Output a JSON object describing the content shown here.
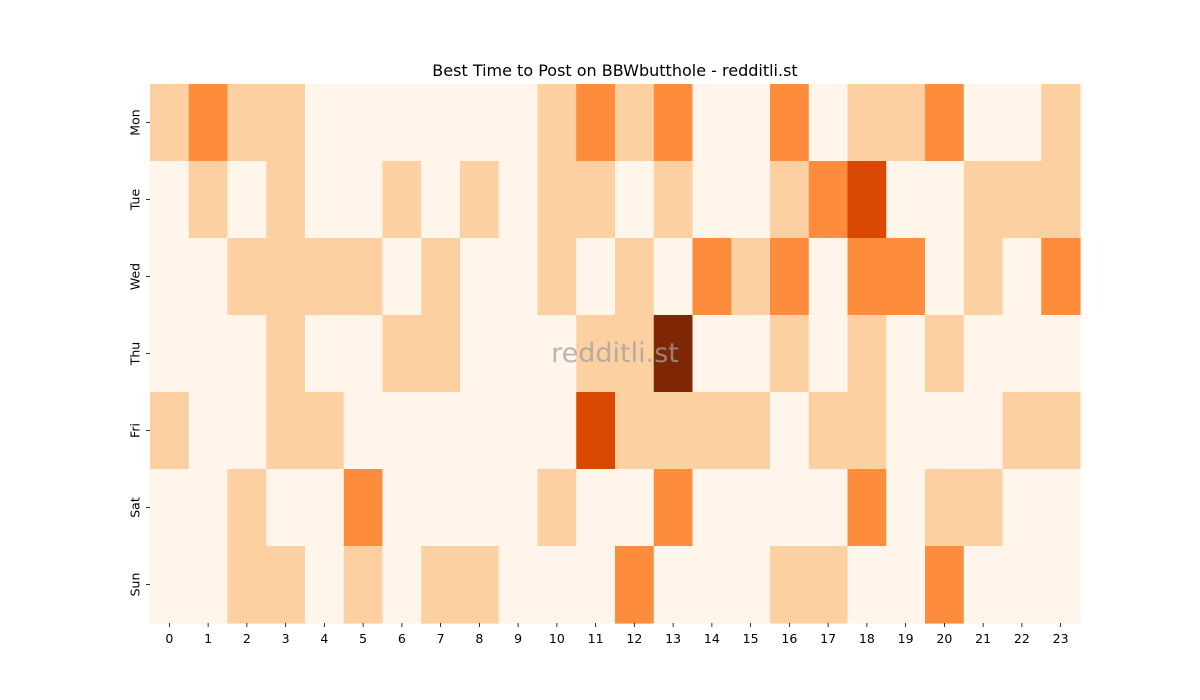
{
  "chart_data": {
    "type": "heatmap",
    "title": "Best Time to Post on BBWbutthole - redditli.st",
    "watermark": "redditli.st",
    "xlabel": "",
    "ylabel": "",
    "x_labels": [
      "0",
      "1",
      "2",
      "3",
      "4",
      "5",
      "6",
      "7",
      "8",
      "9",
      "10",
      "11",
      "12",
      "13",
      "14",
      "15",
      "16",
      "17",
      "18",
      "19",
      "20",
      "21",
      "22",
      "23"
    ],
    "y_labels": [
      "Mon",
      "Tue",
      "Wed",
      "Thu",
      "Fri",
      "Sat",
      "Sun"
    ],
    "values": [
      [
        1,
        2,
        1,
        1,
        0,
        0,
        0,
        0,
        0,
        0,
        1,
        2,
        1,
        2,
        0,
        0,
        2,
        0,
        1,
        1,
        2,
        0,
        0,
        1
      ],
      [
        0,
        1,
        0,
        1,
        0,
        0,
        1,
        0,
        1,
        0,
        1,
        1,
        0,
        1,
        0,
        0,
        1,
        2,
        3,
        0,
        0,
        1,
        1,
        1
      ],
      [
        0,
        0,
        1,
        1,
        1,
        1,
        0,
        1,
        0,
        0,
        1,
        0,
        1,
        0,
        2,
        1,
        2,
        0,
        2,
        2,
        0,
        1,
        0,
        2
      ],
      [
        0,
        0,
        0,
        1,
        0,
        0,
        1,
        1,
        0,
        0,
        0,
        1,
        1,
        4,
        0,
        0,
        1,
        0,
        1,
        0,
        1,
        0,
        0,
        0
      ],
      [
        1,
        0,
        0,
        1,
        1,
        0,
        0,
        0,
        0,
        0,
        0,
        3,
        1,
        1,
        1,
        1,
        0,
        1,
        1,
        0,
        0,
        0,
        1,
        1
      ],
      [
        0,
        0,
        1,
        0,
        0,
        2,
        0,
        0,
        0,
        0,
        1,
        0,
        0,
        2,
        0,
        0,
        0,
        0,
        2,
        0,
        1,
        1,
        0,
        0
      ],
      [
        0,
        0,
        1,
        1,
        0,
        1,
        0,
        1,
        1,
        0,
        0,
        0,
        2,
        0,
        0,
        0,
        1,
        1,
        0,
        0,
        2,
        0,
        0,
        0
      ]
    ],
    "colormap": "Oranges",
    "level_colors": [
      "#fff5eb",
      "#fdd0a2",
      "#fd8d3c",
      "#d94801",
      "#7f2704"
    ],
    "grid": false,
    "colorbar": false
  }
}
